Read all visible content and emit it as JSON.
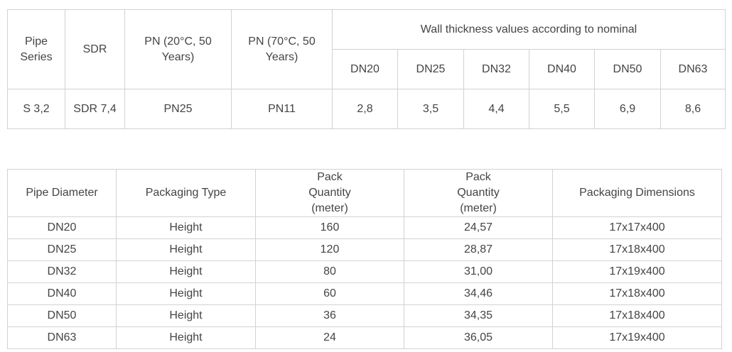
{
  "wall_table": {
    "headers": {
      "pipe_series": "Pipe Series",
      "sdr": "SDR",
      "pn20": "PN (20°C, 50 Years)",
      "pn70": "PN (70°C, 50 Years)",
      "wall_thickness": "Wall thickness values according to nominal"
    },
    "dn_columns": [
      "DN20",
      "DN25",
      "DN32",
      "DN40",
      "DN50",
      "DN63"
    ],
    "row": {
      "pipe_series": "S 3,2",
      "sdr": "SDR 7,4",
      "pn20": "PN25",
      "pn70": "PN11",
      "values": [
        "2,8",
        "3,5",
        "4,4",
        "5,5",
        "6,9",
        "8,6"
      ]
    }
  },
  "pack_table": {
    "headers": {
      "pipe_diameter": "Pipe Diameter",
      "packaging_type": "Packaging Type",
      "pack_qty_1": "Pack Quantity (meter)",
      "pack_qty_2": "Pack Quantity (meter)",
      "packaging_dimensions": "Packaging Dimensions"
    },
    "rows": [
      {
        "diameter": "DN20",
        "type": "Height",
        "qty1": "160",
        "qty2": "24,57",
        "dims": "17x17x400"
      },
      {
        "diameter": "DN25",
        "type": "Height",
        "qty1": "120",
        "qty2": "28,87",
        "dims": "17x18x400"
      },
      {
        "diameter": "DN32",
        "type": "Height",
        "qty1": "80",
        "qty2": "31,00",
        "dims": "17x19x400"
      },
      {
        "diameter": "DN40",
        "type": "Height",
        "qty1": "60",
        "qty2": "34,46",
        "dims": "17x18x400"
      },
      {
        "diameter": "DN50",
        "type": "Height",
        "qty1": "36",
        "qty2": "34,35",
        "dims": "17x18x400"
      },
      {
        "diameter": "DN63",
        "type": "Height",
        "qty1": "24",
        "qty2": "36,05",
        "dims": "17x19x400"
      }
    ]
  }
}
